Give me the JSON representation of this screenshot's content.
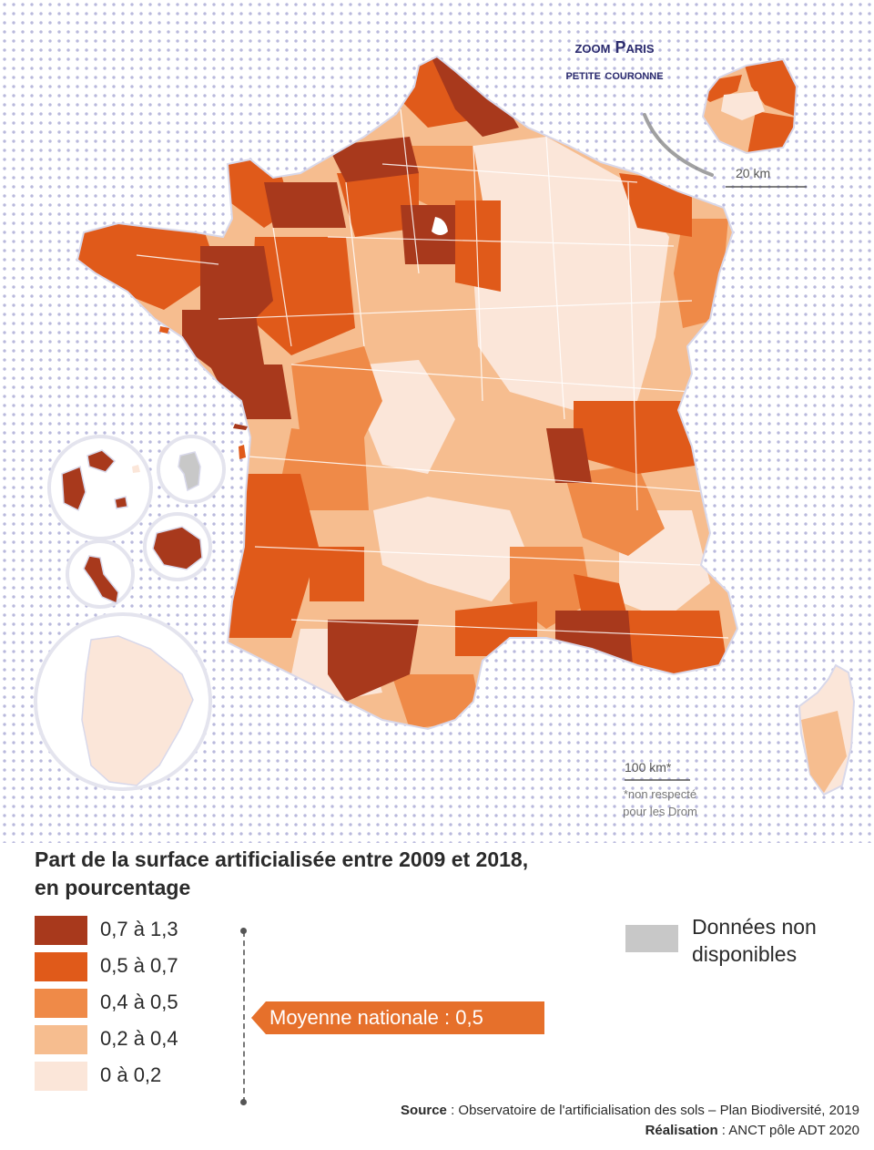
{
  "zoom": {
    "title": "zoom Paris",
    "subtitle": "petite couronne",
    "scale": "20 km"
  },
  "map": {
    "scale": "100 km*",
    "note_line1": "*non respecté",
    "note_line2": "pour les Drom"
  },
  "legend": {
    "title_line1": "Part de la surface artificialisée entre 2009 et 2018,",
    "title_line2": "en pourcentage",
    "classes": [
      {
        "label": "0,7 à 1,3",
        "color": "#a8391c"
      },
      {
        "label": "0,5 à 0,7",
        "color": "#e05a1a"
      },
      {
        "label": "0,4 à 0,5",
        "color": "#ef8a48"
      },
      {
        "label": "0,2 à 0,4",
        "color": "#f6bd8f"
      },
      {
        "label": "0 à 0,2",
        "color": "#fbe6d9"
      }
    ],
    "moyenne": "Moyenne nationale :  0,5",
    "moyenne_color": "#e6702b",
    "no_data_line1": "Données  non",
    "no_data_line2": "disponibles",
    "no_data_color": "#c8c8c8"
  },
  "credits": {
    "source_key": "Source",
    "source_value": " : Observatoire de l'artificialisation des sols – Plan Biodiversité, 2019",
    "realisation_key": "Réalisation",
    "realisation_value": " : ANCT pôle ADT 2020"
  },
  "background_dot_color": "#b9b9dc"
}
